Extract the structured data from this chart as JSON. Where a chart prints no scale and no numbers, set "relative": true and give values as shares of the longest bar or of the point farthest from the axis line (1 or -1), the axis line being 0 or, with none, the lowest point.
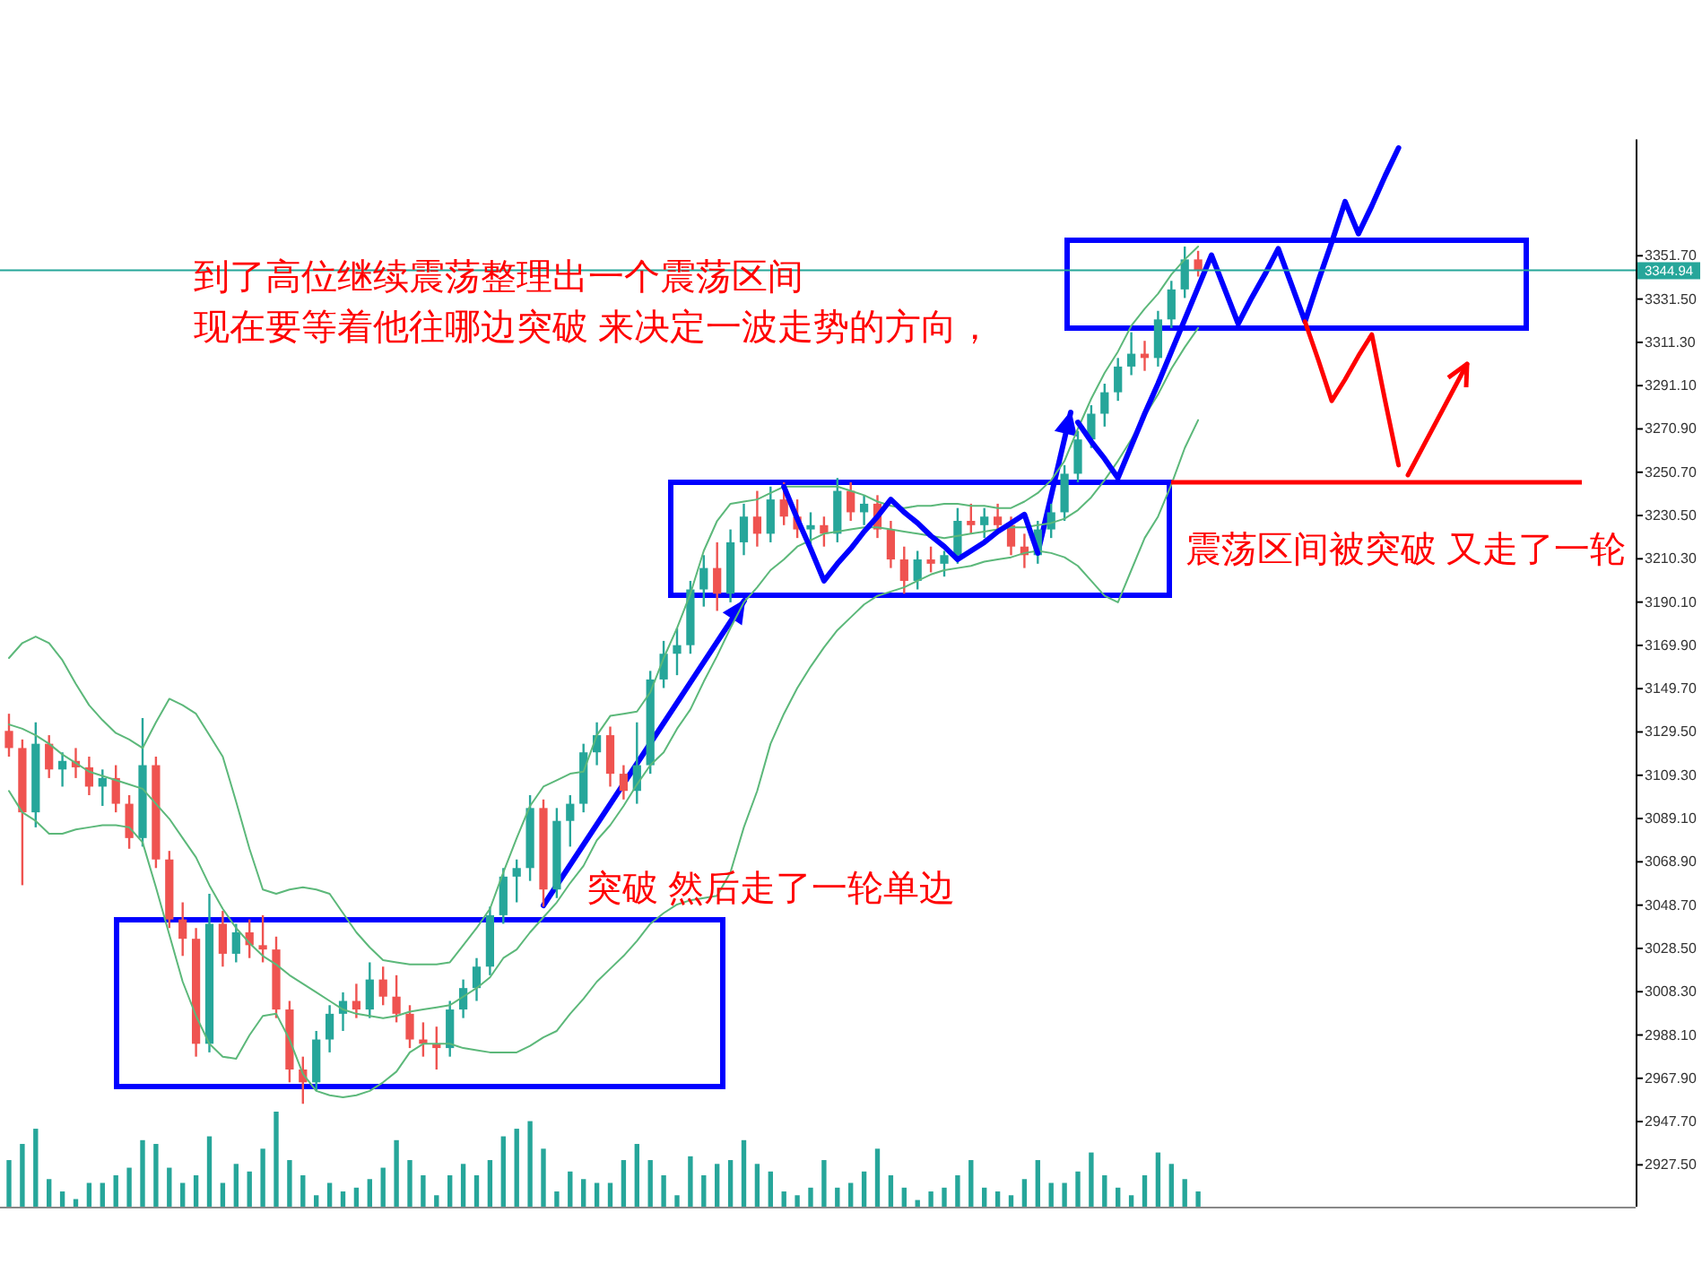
{
  "chart_data": [
    {
      "type": "candlestick",
      "categories": [
        null,
        null,
        null,
        null,
        null,
        null,
        null,
        null,
        null,
        null,
        null,
        null,
        null,
        null,
        null,
        null,
        null,
        null,
        null,
        null,
        null,
        null,
        null,
        null,
        null,
        null,
        null,
        null,
        null,
        null,
        null,
        null,
        null,
        null,
        null,
        null,
        null,
        null,
        null,
        null,
        null,
        null,
        null,
        null,
        null,
        null,
        null,
        null,
        null,
        null,
        null,
        null,
        null,
        null,
        null,
        null,
        null,
        null,
        null,
        null,
        null,
        null,
        null,
        null,
        null,
        null,
        null,
        null,
        null,
        null,
        null,
        null,
        null,
        null,
        null,
        null,
        null,
        null,
        null,
        null,
        null,
        null,
        null,
        null,
        null,
        null,
        null,
        null,
        null,
        null,
        null,
        null,
        null,
        null,
        null,
        null,
        null,
        null,
        null,
        null,
        null,
        null,
        null,
        null,
        null,
        null,
        null,
        null,
        null,
        null,
        null,
        null,
        null,
        null,
        null,
        null,
        null,
        null,
        null,
        null,
        null,
        null
      ],
      "ohlc": [
        [
          3130,
          3138,
          3118,
          3122
        ],
        [
          3122,
          3126,
          3058,
          3092
        ],
        [
          3092,
          3134,
          3085,
          3124
        ],
        [
          3124,
          3128,
          3108,
          3112
        ],
        [
          3112,
          3120,
          3104,
          3116
        ],
        [
          3116,
          3122,
          3108,
          3113
        ],
        [
          3113,
          3118,
          3100,
          3104
        ],
        [
          3104,
          3112,
          3095,
          3108
        ],
        [
          3108,
          3114,
          3092,
          3096
        ],
        [
          3096,
          3100,
          3075,
          3080
        ],
        [
          3080,
          3136,
          3076,
          3114
        ],
        [
          3114,
          3118,
          3066,
          3070
        ],
        [
          3070,
          3074,
          3038,
          3042
        ],
        [
          3042,
          3050,
          3025,
          3033
        ],
        [
          3033,
          3038,
          2978,
          2984
        ],
        [
          2984,
          3054,
          2980,
          3040
        ],
        [
          3040,
          3046,
          3020,
          3026
        ],
        [
          3026,
          3040,
          3022,
          3036
        ],
        [
          3036,
          3042,
          3024,
          3030
        ],
        [
          3030,
          3044,
          3022,
          3028
        ],
        [
          3028,
          3034,
          2996,
          3000
        ],
        [
          3000,
          3004,
          2966,
          2972
        ],
        [
          2972,
          2978,
          2956,
          2966
        ],
        [
          2966,
          2990,
          2962,
          2986
        ],
        [
          2986,
          3002,
          2980,
          2998
        ],
        [
          2998,
          3008,
          2990,
          3004
        ],
        [
          3004,
          3012,
          2996,
          3000
        ],
        [
          3000,
          3022,
          2996,
          3014
        ],
        [
          3014,
          3020,
          3002,
          3006
        ],
        [
          3006,
          3016,
          2994,
          2998
        ],
        [
          2998,
          3002,
          2982,
          2986
        ],
        [
          2986,
          2994,
          2978,
          2984
        ],
        [
          2984,
          2992,
          2972,
          2982
        ],
        [
          2982,
          3004,
          2978,
          3000
        ],
        [
          3000,
          3014,
          2996,
          3010
        ],
        [
          3010,
          3024,
          3004,
          3020
        ],
        [
          3020,
          3048,
          3016,
          3044
        ],
        [
          3044,
          3066,
          3040,
          3062
        ],
        [
          3062,
          3070,
          3050,
          3066
        ],
        [
          3066,
          3100,
          3060,
          3094
        ],
        [
          3094,
          3098,
          3048,
          3056
        ],
        [
          3056,
          3094,
          3052,
          3088
        ],
        [
          3088,
          3100,
          3076,
          3096
        ],
        [
          3096,
          3124,
          3092,
          3120
        ],
        [
          3120,
          3134,
          3114,
          3128
        ],
        [
          3128,
          3132,
          3104,
          3110
        ],
        [
          3110,
          3114,
          3098,
          3102
        ],
        [
          3102,
          3134,
          3096,
          3114
        ],
        [
          3114,
          3158,
          3110,
          3154
        ],
        [
          3154,
          3172,
          3150,
          3166
        ],
        [
          3166,
          3178,
          3156,
          3170
        ],
        [
          3170,
          3200,
          3166,
          3196
        ],
        [
          3196,
          3212,
          3188,
          3206
        ],
        [
          3206,
          3218,
          3186,
          3194
        ],
        [
          3194,
          3224,
          3190,
          3218
        ],
        [
          3218,
          3236,
          3212,
          3230
        ],
        [
          3230,
          3242,
          3216,
          3222
        ],
        [
          3222,
          3244,
          3218,
          3238
        ],
        [
          3238,
          3246,
          3226,
          3230
        ],
        [
          3230,
          3238,
          3220,
          3224
        ],
        [
          3224,
          3232,
          3216,
          3226
        ],
        [
          3226,
          3230,
          3216,
          3222
        ],
        [
          3222,
          3248,
          3218,
          3242
        ],
        [
          3242,
          3246,
          3228,
          3232
        ],
        [
          3232,
          3240,
          3226,
          3236
        ],
        [
          3236,
          3240,
          3220,
          3224
        ],
        [
          3224,
          3228,
          3206,
          3210
        ],
        [
          3210,
          3216,
          3194,
          3200
        ],
        [
          3200,
          3214,
          3196,
          3210
        ],
        [
          3210,
          3216,
          3204,
          3208
        ],
        [
          3208,
          3214,
          3202,
          3212
        ],
        [
          3212,
          3234,
          3208,
          3228
        ],
        [
          3228,
          3236,
          3222,
          3226
        ],
        [
          3226,
          3234,
          3220,
          3230
        ],
        [
          3230,
          3236,
          3222,
          3226
        ],
        [
          3226,
          3230,
          3212,
          3216
        ],
        [
          3216,
          3222,
          3206,
          3212
        ],
        [
          3212,
          3228,
          3208,
          3224
        ],
        [
          3224,
          3236,
          3220,
          3232
        ],
        [
          3232,
          3254,
          3228,
          3250
        ],
        [
          3250,
          3270,
          3246,
          3266
        ],
        [
          3266,
          3282,
          3262,
          3278
        ],
        [
          3278,
          3292,
          3272,
          3288
        ],
        [
          3288,
          3304,
          3284,
          3300
        ],
        [
          3300,
          3316,
          3296,
          3306
        ],
        [
          3306,
          3312,
          3298,
          3304
        ],
        [
          3304,
          3326,
          3300,
          3322
        ],
        [
          3322,
          3340,
          3318,
          3336
        ],
        [
          3336,
          3356,
          3332,
          3350
        ],
        [
          3350,
          3354,
          3342,
          3344.94
        ],
        null,
        null,
        null,
        null,
        null,
        null,
        null,
        null,
        null,
        null,
        null,
        null,
        null,
        null,
        null,
        null,
        null,
        null,
        null,
        null,
        null,
        null,
        null,
        null,
        null,
        null,
        null,
        null,
        null,
        null,
        null,
        null
      ],
      "colors": [
        "#ef5350",
        "#ef5350",
        "#26a69a",
        "#ef5350",
        "#26a69a",
        "#ef5350",
        "#ef5350",
        "#26a69a",
        "#ef5350",
        "#ef5350",
        "#26a69a",
        "#ef5350",
        "#ef5350",
        "#ef5350",
        "#ef5350",
        "#26a69a",
        "#ef5350",
        "#26a69a",
        "#ef5350",
        "#ef5350",
        "#ef5350",
        "#ef5350",
        "#ef5350",
        "#26a69a",
        "#26a69a",
        "#26a69a",
        "#ef5350",
        "#26a69a",
        "#ef5350",
        "#ef5350",
        "#ef5350",
        "#ef5350",
        "#ef5350",
        "#26a69a",
        "#26a69a",
        "#26a69a",
        "#26a69a",
        "#26a69a",
        "#26a69a",
        "#26a69a",
        "#ef5350",
        "#26a69a",
        "#26a69a",
        "#26a69a",
        "#26a69a",
        "#ef5350",
        "#ef5350",
        "#26a69a",
        "#26a69a",
        "#26a69a",
        "#26a69a",
        "#26a69a",
        "#26a69a",
        "#ef5350",
        "#26a69a",
        "#26a69a",
        "#ef5350",
        "#26a69a",
        "#ef5350",
        "#ef5350",
        "#26a69a",
        "#ef5350",
        "#26a69a",
        "#ef5350",
        "#26a69a",
        "#ef5350",
        "#ef5350",
        "#ef5350",
        "#26a69a",
        "#ef5350",
        "#26a69a",
        "#26a69a",
        "#ef5350",
        "#26a69a",
        "#ef5350",
        "#ef5350",
        "#ef5350",
        "#26a69a",
        "#26a69a",
        "#26a69a",
        "#26a69a",
        "#26a69a",
        "#26a69a",
        "#26a69a",
        "#26a69a",
        "#ef5350",
        "#26a69a",
        "#26a69a",
        "#26a69a",
        "#ef5350",
        null,
        null,
        null,
        null,
        null,
        null,
        null,
        null,
        null,
        null,
        null,
        null,
        null,
        null,
        null,
        null,
        null,
        null,
        null,
        null,
        null,
        null,
        null,
        null,
        null,
        null,
        null,
        null,
        null,
        null,
        null,
        null
      ],
      "series": [
        {
          "type": "line",
          "color": "#5cb87a",
          "values": [
            3164,
            3171,
            3174,
            3171,
            3163,
            3152,
            3142,
            3135,
            3129,
            3126,
            3122,
            3134,
            3145,
            3142,
            3138,
            3128,
            3118,
            3097,
            3075,
            3056,
            3054,
            3056,
            3057,
            3056,
            3054,
            3045,
            3036,
            3029,
            3023,
            3022,
            3021,
            3021,
            3021,
            3022,
            3030,
            3038,
            3047,
            3064,
            3080,
            3095,
            3104,
            3107,
            3110,
            3111,
            3128,
            3137,
            3138,
            3139,
            3148,
            3164,
            3178,
            3194,
            3214,
            3228,
            3236,
            3237,
            3238,
            3241,
            3244,
            3244,
            3244,
            3244,
            3244,
            3242,
            3240,
            3237,
            3235,
            3234,
            3235,
            3235,
            3236,
            3236,
            3235,
            3235,
            3234,
            3234,
            3237,
            3241,
            3247,
            3256,
            3271,
            3285,
            3297,
            3307,
            3319,
            3327,
            3334,
            3343,
            3350,
            3356,
            null,
            null,
            null,
            null,
            null,
            null,
            null,
            null,
            null,
            null,
            null,
            null,
            null,
            null,
            null,
            null,
            null,
            null,
            null,
            null,
            null,
            null,
            null,
            null,
            null,
            null,
            null,
            null,
            null,
            null,
            null,
            null
          ]
        },
        {
          "type": "line",
          "color": "#5cb87a",
          "values": [
            3133,
            3131,
            3128,
            3124,
            3119,
            3115,
            3111,
            3109,
            3107,
            3105,
            3103,
            3096,
            3089,
            3080,
            3071,
            3058,
            3047,
            3038,
            3031,
            3025,
            3021,
            3016,
            3012,
            3008,
            3004,
            3000,
            2998,
            2997,
            2996,
            2997,
            2999,
            3000,
            3001,
            3002,
            3006,
            3010,
            3015,
            3024,
            3028,
            3036,
            3043,
            3050,
            3059,
            3067,
            3079,
            3086,
            3095,
            3105,
            3114,
            3120,
            3131,
            3140,
            3153,
            3165,
            3178,
            3190,
            3197,
            3205,
            3210,
            3216,
            3219,
            3222,
            3223,
            3224,
            3225,
            3225,
            3224,
            3223,
            3222,
            3221,
            3220,
            3221,
            3222,
            3223,
            3224,
            3225,
            3225,
            3226,
            3227,
            3229,
            3233,
            3239,
            3247,
            3256,
            3266,
            3277,
            3287,
            3299,
            3309,
            3318,
            null,
            null,
            null,
            null,
            null,
            null,
            null,
            null,
            null,
            null,
            null,
            null,
            null,
            null,
            null,
            null,
            null,
            null,
            null,
            null,
            null,
            null,
            null,
            null,
            null,
            null,
            null,
            null,
            null,
            null,
            null,
            null
          ]
        },
        {
          "type": "line",
          "color": "#5cb87a",
          "values": [
            3102,
            3092,
            3088,
            3082,
            3082,
            3084,
            3085,
            3086,
            3086,
            3085,
            3078,
            3057,
            3035,
            3013,
            2997,
            2984,
            2978,
            2977,
            2988,
            2997,
            2998,
            2986,
            2970,
            2962,
            2960,
            2959,
            2960,
            2962,
            2966,
            2971,
            2980,
            2984,
            2984,
            2984,
            2982,
            2981,
            2980,
            2980,
            2980,
            2983,
            2987,
            2990,
            2998,
            3005,
            3013,
            3019,
            3025,
            3032,
            3040,
            3045,
            3049,
            3051,
            3052,
            3053,
            3064,
            3085,
            3102,
            3124,
            3138,
            3150,
            3160,
            3169,
            3177,
            3183,
            3189,
            3193,
            3195,
            3197,
            3200,
            3203,
            3205,
            3206,
            3207,
            3209,
            3210,
            3211,
            3213,
            3214,
            3213,
            3211,
            3207,
            3200,
            3193,
            3190,
            3205,
            3220,
            3230,
            3245,
            3262,
            3275,
            null,
            null,
            null,
            null,
            null,
            null,
            null,
            null,
            null,
            null,
            null,
            null,
            null,
            null,
            null,
            null,
            null,
            null,
            null,
            null,
            null,
            null,
            null,
            null,
            null,
            null,
            null,
            null,
            null,
            null,
            null,
            null
          ]
        },
        {
          "type": "line",
          "color": "#0000ff",
          "values": [
            null,
            null,
            null,
            null,
            null,
            null,
            null,
            null,
            null,
            null,
            null,
            null,
            null,
            null,
            null,
            null,
            null,
            null,
            null,
            null,
            null,
            null,
            null,
            null,
            null,
            null,
            null,
            null,
            null,
            null,
            null,
            null,
            null,
            null,
            null,
            null,
            null,
            null,
            null,
            null,
            null,
            null,
            null,
            null,
            null,
            null,
            null,
            null,
            null,
            null,
            null,
            null,
            null,
            null,
            null,
            null,
            null,
            null,
            null,
            null,
            null,
            null,
            null,
            null,
            null,
            null,
            null,
            null,
            null,
            null,
            null,
            null,
            null,
            null,
            null,
            null,
            null,
            null,
            null,
            null,
            3274,
            3265,
            3257,
            3248,
            3263,
            3278,
            3292,
            3307,
            3322,
            3337,
            3352,
            3336,
            3320,
            3332,
            3343,
            3355,
            3338,
            3321,
            3340,
            3358,
            3377,
            3362,
            3375,
            3389,
            3402,
            null,
            null,
            null,
            null,
            null,
            null,
            null,
            null,
            null,
            null,
            null,
            null,
            null,
            null,
            null,
            null,
            null
          ]
        },
        {
          "type": "line",
          "color": "#ff0000",
          "values": [
            null,
            null,
            null,
            null,
            null,
            null,
            null,
            null,
            null,
            null,
            null,
            null,
            null,
            null,
            null,
            null,
            null,
            null,
            null,
            null,
            null,
            null,
            null,
            null,
            null,
            null,
            null,
            null,
            null,
            null,
            null,
            null,
            null,
            null,
            null,
            null,
            null,
            null,
            null,
            null,
            null,
            null,
            null,
            null,
            null,
            null,
            null,
            null,
            null,
            null,
            null,
            null,
            null,
            null,
            null,
            null,
            null,
            null,
            null,
            null,
            null,
            null,
            null,
            null,
            null,
            null,
            null,
            null,
            null,
            null,
            null,
            null,
            null,
            null,
            null,
            null,
            null,
            null,
            null,
            null,
            null,
            null,
            null,
            null,
            null,
            null,
            null,
            null,
            null,
            null,
            null,
            null,
            null,
            null,
            null,
            null,
            null,
            3321,
            3303,
            3284,
            3294,
            3305,
            3315,
            3284,
            3254,
            null,
            null,
            null,
            null,
            null,
            null,
            null,
            null,
            null,
            null,
            null,
            null,
            null,
            null,
            null,
            null,
            null
          ]
        },
        {
          "type": "line",
          "color": "#0000ff",
          "values": [
            null,
            null,
            null,
            null,
            null,
            null,
            null,
            null,
            null,
            null,
            null,
            null,
            null,
            null,
            null,
            null,
            null,
            null,
            null,
            null,
            null,
            null,
            null,
            null,
            null,
            null,
            null,
            null,
            null,
            null,
            null,
            null,
            null,
            null,
            null,
            null,
            null,
            null,
            null,
            null,
            null,
            null,
            null,
            null,
            null,
            null,
            null,
            null,
            null,
            null,
            null,
            null,
            null,
            null,
            null,
            null,
            null,
            null,
            3244,
            3229,
            3215,
            3200,
            3208,
            3215,
            3223,
            3230,
            3238,
            3232,
            3227,
            3221,
            3216,
            3210,
            3214,
            3218,
            3223,
            3227,
            3231,
            3213,
            null,
            null,
            null,
            null,
            null,
            null,
            null,
            null,
            null,
            null,
            null,
            null,
            null,
            null,
            null,
            null,
            null,
            null,
            null,
            null,
            null,
            null,
            null,
            null,
            null,
            null,
            null,
            null,
            null,
            null,
            null,
            null,
            null,
            null,
            null,
            null,
            null,
            null,
            null,
            null,
            null,
            null,
            null,
            null
          ]
        }
      ],
      "ylim": [
        2908,
        3406
      ],
      "yticks": [
        {
          "value": 3351.7,
          "label": "3351.70"
        },
        {
          "value": 3331.5,
          "label": "3331.50"
        },
        {
          "value": 3311.3,
          "label": "3311.30"
        },
        {
          "value": 3291.1,
          "label": "3291.10"
        },
        {
          "value": 3270.9,
          "label": "3270.90"
        },
        {
          "value": 3250.7,
          "label": "3250.70"
        },
        {
          "value": 3230.5,
          "label": "3230.50"
        },
        {
          "value": 3210.3,
          "label": "3210.30"
        },
        {
          "value": 3190.1,
          "label": "3190.10"
        },
        {
          "value": 3169.9,
          "label": "3169.90"
        },
        {
          "value": 3149.7,
          "label": "3149.70"
        },
        {
          "value": 3129.5,
          "label": "3129.50"
        },
        {
          "value": 3109.3,
          "label": "3109.30"
        },
        {
          "value": 3089.1,
          "label": "3089.10"
        },
        {
          "value": 3068.9,
          "label": "3068.90"
        },
        {
          "value": 3048.7,
          "label": "3048.70"
        },
        {
          "value": 3028.5,
          "label": "3028.50"
        },
        {
          "value": 3008.3,
          "label": "3008.30"
        },
        {
          "value": 2988.1,
          "label": "2988.10"
        },
        {
          "value": 2967.9,
          "label": "2967.90"
        },
        {
          "value": 2947.7,
          "label": "2947.70"
        },
        {
          "value": 2927.5,
          "label": "2927.50"
        }
      ],
      "ref_lines": [
        {
          "axis": "y",
          "value": 3344.94,
          "label": "3344.94",
          "color": "#26a69a"
        },
        {
          "axis": "y",
          "value": 3246,
          "color": "#ff0000"
        }
      ],
      "annotations": [
        "到了高位继续震荡整理出一个震荡区间",
        "现在要等着他往哪边突破 来决定一波走势的方向，",
        "震荡区间被突破 又走了一轮",
        "突破 然后走了一轮单边"
      ],
      "tick_labels": "y"
    },
    {
      "type": "bar",
      "relative": true,
      "color": "#26a69a",
      "tick_labels": false,
      "categories": [
        null,
        null,
        null,
        null,
        null,
        null,
        null,
        null,
        null,
        null,
        null,
        null,
        null,
        null,
        null,
        null,
        null,
        null,
        null,
        null,
        null,
        null,
        null,
        null,
        null,
        null,
        null,
        null,
        null,
        null,
        null,
        null,
        null,
        null,
        null,
        null,
        null,
        null,
        null,
        null,
        null,
        null,
        null,
        null,
        null,
        null,
        null,
        null,
        null,
        null,
        null,
        null,
        null,
        null,
        null,
        null,
        null,
        null,
        null,
        null,
        null,
        null,
        null,
        null,
        null,
        null,
        null,
        null,
        null,
        null,
        null,
        null,
        null,
        null,
        null,
        null,
        null,
        null,
        null,
        null,
        null,
        null,
        null,
        null,
        null,
        null,
        null,
        null,
        null,
        null
      ],
      "values": [
        0.49,
        0.66,
        0.82,
        0.29,
        0.16,
        0.08,
        0.25,
        0.25,
        0.33,
        0.41,
        0.7,
        0.66,
        0.41,
        0.25,
        0.33,
        0.74,
        0.25,
        0.45,
        0.37,
        0.61,
        1,
        0.49,
        0.33,
        0.12,
        0.25,
        0.16,
        0.2,
        0.29,
        0.41,
        0.7,
        0.49,
        0.33,
        0.12,
        0.33,
        0.45,
        0.33,
        0.49,
        0.74,
        0.82,
        0.9,
        0.61,
        0.16,
        0.37,
        0.29,
        0.25,
        0.25,
        0.49,
        0.66,
        0.49,
        0.33,
        0.12,
        0.53,
        0.33,
        0.45,
        0.49,
        0.7,
        0.45,
        0.37,
        0.16,
        0.12,
        0.2,
        0.49,
        0.2,
        0.25,
        0.37,
        0.61,
        0.33,
        0.2,
        0.07,
        0.16,
        0.2,
        0.33,
        0.49,
        0.2,
        0.16,
        0.12,
        0.29,
        0.49,
        0.25,
        0.25,
        0.37,
        0.57,
        0.33,
        0.2,
        0.12,
        0.33,
        0.57,
        0.45,
        0.29,
        0.16
      ]
    }
  ]
}
